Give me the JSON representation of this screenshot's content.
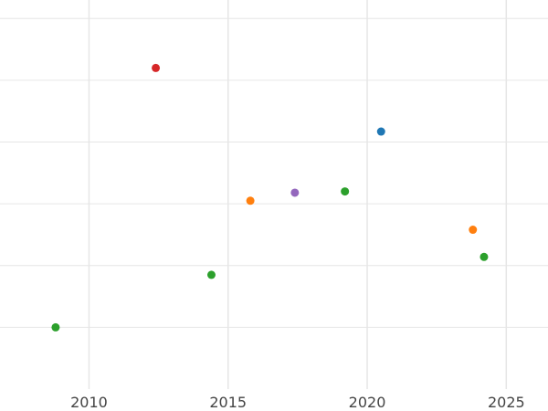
{
  "chart_data": {
    "type": "scatter",
    "title": "",
    "xlabel": "",
    "ylabel": "",
    "xlim": [
      2006.8,
      2026.5
    ],
    "ylim": [
      0,
      6.3
    ],
    "grid": true,
    "x_ticks": [
      2010,
      2015,
      2020,
      2025
    ],
    "x_tick_labels": [
      "2010",
      "2015",
      "2020",
      "2025"
    ],
    "y_gridlines": [
      1,
      2,
      3,
      4,
      5,
      6
    ],
    "y_tick_labels": [],
    "points": [
      {
        "x": 2008.8,
        "y": 1.0,
        "color": "#2ca02c"
      },
      {
        "x": 2012.4,
        "y": 5.2,
        "color": "#d62728"
      },
      {
        "x": 2014.4,
        "y": 1.85,
        "color": "#2ca02c"
      },
      {
        "x": 2015.8,
        "y": 3.05,
        "color": "#ff7f0e"
      },
      {
        "x": 2017.4,
        "y": 3.18,
        "color": "#9467bd"
      },
      {
        "x": 2019.2,
        "y": 3.2,
        "color": "#2ca02c"
      },
      {
        "x": 2020.5,
        "y": 4.17,
        "color": "#1f77b4"
      },
      {
        "x": 2023.8,
        "y": 2.58,
        "color": "#ff7f0e"
      },
      {
        "x": 2024.2,
        "y": 2.14,
        "color": "#2ca02c"
      }
    ]
  }
}
